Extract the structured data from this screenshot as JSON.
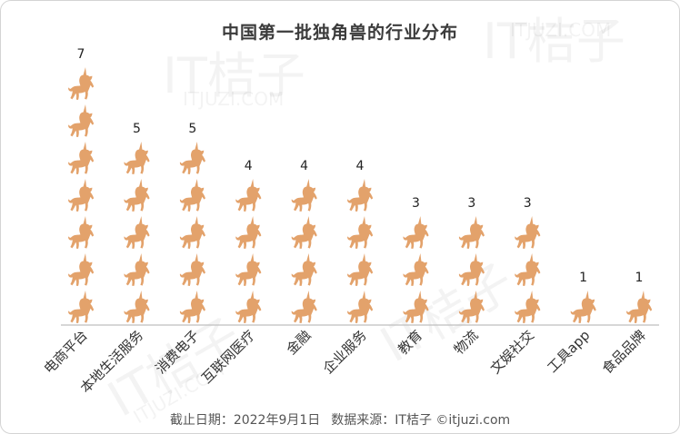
{
  "footer": {
    "date": "截止日期：2022年9月1日",
    "source": "数据来源：IT桔子 ©itjuzi.com"
  },
  "watermark": {
    "brand": "IT桔子",
    "url": "ITJUZI.COM"
  },
  "colors": {
    "icon": "#e3a26b",
    "axis": "#bfbfbf"
  },
  "chart_data": {
    "type": "bar",
    "title": "中国第一批独角兽的行业分布",
    "categories": [
      "电商平台",
      "本地生活服务",
      "消费电子",
      "互联网医疗",
      "金融",
      "企业服务",
      "教育",
      "物流",
      "文娱社交",
      "工具app",
      "食品品牌"
    ],
    "values": [
      7,
      5,
      5,
      4,
      4,
      4,
      3,
      3,
      3,
      1,
      1
    ],
    "unit_icon": "unicorn-icon",
    "data_labels": true,
    "grid": false,
    "legend": "none"
  }
}
